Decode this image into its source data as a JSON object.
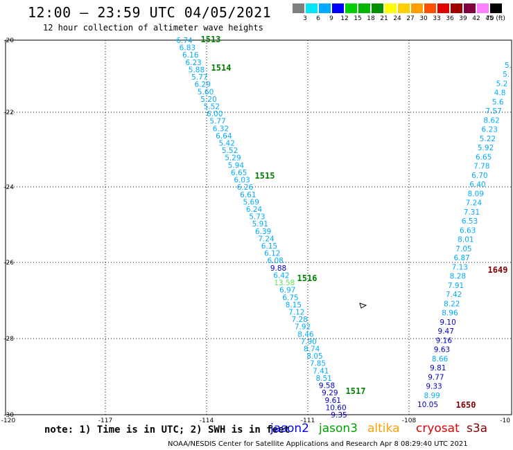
{
  "header": {
    "title": "12:00 – 23:59 UTC 04/05/2021",
    "subtitle": "12 hour collection of altimeter wave heights"
  },
  "color_scale": {
    "labels": [
      "3",
      "6",
      "9",
      "12",
      "15",
      "18",
      "21",
      "24",
      "27",
      "30",
      "33",
      "36",
      "39",
      "42",
      "45",
      "70 (ft)"
    ],
    "colors": [
      "#7f7f7f",
      "#00e6ff",
      "#00aaff",
      "#0000ff",
      "#00d000",
      "#00b400",
      "#009000",
      "#ffff00",
      "#ffd000",
      "#ffa000",
      "#ff5000",
      "#e00000",
      "#a00000",
      "#800040",
      "#ff80ff",
      "#000000"
    ]
  },
  "map": {
    "lat_labels": [
      "-20",
      "-22",
      "-24",
      "-26",
      "-28",
      "-30"
    ],
    "lon_labels": [
      "-120",
      "-117",
      "-114",
      "-111",
      "-108",
      "-10"
    ],
    "track_west": {
      "values": [
        "6.74",
        "6.83",
        "6.16",
        "6.23",
        "5.88",
        "5.77",
        "6.29",
        "5.60",
        "5.20",
        "5.52",
        "6.00",
        "5.77",
        "6.32",
        "6.64",
        "5.42",
        "5.52",
        "5.29",
        "5.94",
        "6.65",
        "6.03",
        "6.26",
        "6.61",
        "5.69",
        "6.24",
        "5.73",
        "5.91",
        "6.39",
        "7.24",
        "6.15",
        "6.12",
        "6.08",
        "9.88",
        "6.42",
        "13.58",
        "6.97",
        "6.75",
        "8.15",
        "7.12",
        "7.28",
        "7.92",
        "8.46",
        "7.90",
        "8.74",
        "8.05",
        "7.85",
        "7.41",
        "8.51",
        "9.58",
        "9.29",
        "9.61",
        "10.60",
        "9.35"
      ],
      "colors": [
        "#00aaff",
        "#00aaff",
        "#00aaff",
        "#00aaff",
        "#00aaff",
        "#00aaff",
        "#00aaff",
        "#00aaff",
        "#00aaff",
        "#00aaff",
        "#00aaff",
        "#00aaff",
        "#00aaff",
        "#00aaff",
        "#00aaff",
        "#00aaff",
        "#00aaff",
        "#00aaff",
        "#00aaff",
        "#00aaff",
        "#00aaff",
        "#00aaff",
        "#00aaff",
        "#00aaff",
        "#00aaff",
        "#00aaff",
        "#00aaff",
        "#00aaff",
        "#00aaff",
        "#00aaff",
        "#00aaff",
        "#0000cc",
        "#00aaff",
        "#60e060",
        "#00aaff",
        "#00aaff",
        "#00aaff",
        "#00aaff",
        "#00aaff",
        "#00aaff",
        "#00aaff",
        "#00aaff",
        "#00aaff",
        "#00aaff",
        "#00aaff",
        "#00aaff",
        "#00aaff",
        "#0000cc",
        "#0000cc",
        "#0000cc",
        "#0000cc",
        "#0000cc"
      ],
      "time_labels": [
        "1513",
        "1514",
        "1515",
        "1516",
        "1517"
      ],
      "time_color": "#008000"
    },
    "track_east": {
      "values": [
        "5.",
        "5.",
        "5.2",
        "4.8",
        "5.6",
        "7.57",
        "8.62",
        "6.23",
        "5.22",
        "5.92",
        "6.65",
        "7.78",
        "6.70",
        "6.40",
        "8.09",
        "7.24",
        "7.31",
        "6.53",
        "6.63",
        "8.01",
        "7.05",
        "6.87",
        "7.13",
        "8.28",
        "7.91",
        "7.42",
        "8.22",
        "8.96",
        "9.10",
        "9.47",
        "9.16",
        "9.63",
        "8.66",
        "9.81",
        "9.77",
        "9.33",
        "8.99",
        "10.05"
      ],
      "colors": [
        "#00aaff",
        "#00aaff",
        "#00aaff",
        "#00aaff",
        "#00aaff",
        "#00aaff",
        "#00aaff",
        "#00aaff",
        "#00aaff",
        "#00aaff",
        "#00aaff",
        "#00aaff",
        "#00aaff",
        "#00aaff",
        "#00aaff",
        "#00aaff",
        "#00aaff",
        "#00aaff",
        "#00aaff",
        "#00aaff",
        "#00aaff",
        "#00aaff",
        "#00aaff",
        "#00aaff",
        "#00aaff",
        "#00aaff",
        "#00aaff",
        "#00aaff",
        "#0000cc",
        "#0000cc",
        "#0000cc",
        "#0000cc",
        "#00aaff",
        "#0000cc",
        "#0000cc",
        "#0000cc",
        "#00aaff",
        "#0000cc"
      ],
      "time_labels": [
        "1649",
        "1650"
      ],
      "time_color": "#800000"
    }
  },
  "footer": {
    "note": "note: 1) Time is in UTC; 2) SWH is in feet",
    "legend": [
      {
        "label": "jason2",
        "color": "#0000ff"
      },
      {
        "label": "jason3",
        "color": "#00a000"
      },
      {
        "label": "altika",
        "color": "#ffa000"
      },
      {
        "label": "cryosat",
        "color": "#e00000"
      },
      {
        "label": "s3a",
        "color": "#800000"
      }
    ],
    "credit": "NOAA/NESDIS Center for Satellite Applications and Research   Apr  8 08:29:40 UTC 2021"
  }
}
